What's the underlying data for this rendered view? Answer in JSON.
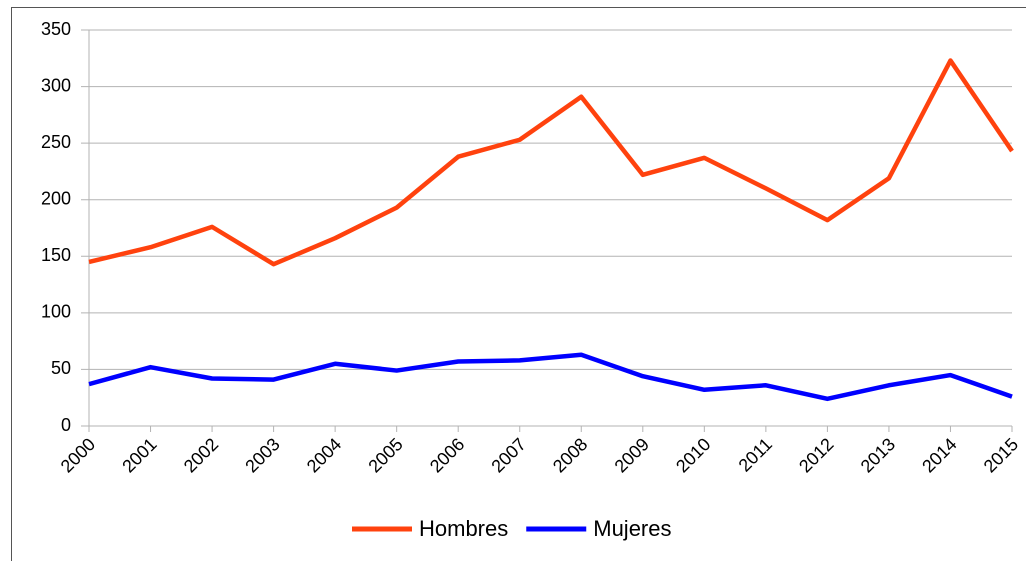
{
  "chart_data": {
    "type": "line",
    "categories": [
      "2000",
      "2001",
      "2002",
      "2003",
      "2004",
      "2005",
      "2006",
      "2007",
      "2008",
      "2009",
      "2010",
      "2011",
      "2012",
      "2013",
      "2014",
      "2015"
    ],
    "series": [
      {
        "name": "Hombres",
        "color": "#ff420e",
        "values": [
          145,
          158,
          176,
          143,
          166,
          193,
          238,
          253,
          291,
          222,
          237,
          210,
          182,
          219,
          323,
          243
        ]
      },
      {
        "name": "Mujeres",
        "color": "#0000ff",
        "values": [
          37,
          52,
          42,
          41,
          55,
          49,
          57,
          58,
          63,
          44,
          32,
          36,
          24,
          36,
          45,
          26
        ]
      }
    ],
    "ylim": [
      0,
      350
    ],
    "yticks": [
      0,
      50,
      100,
      150,
      200,
      250,
      300,
      350
    ],
    "grid": true,
    "legend": "bottom"
  }
}
